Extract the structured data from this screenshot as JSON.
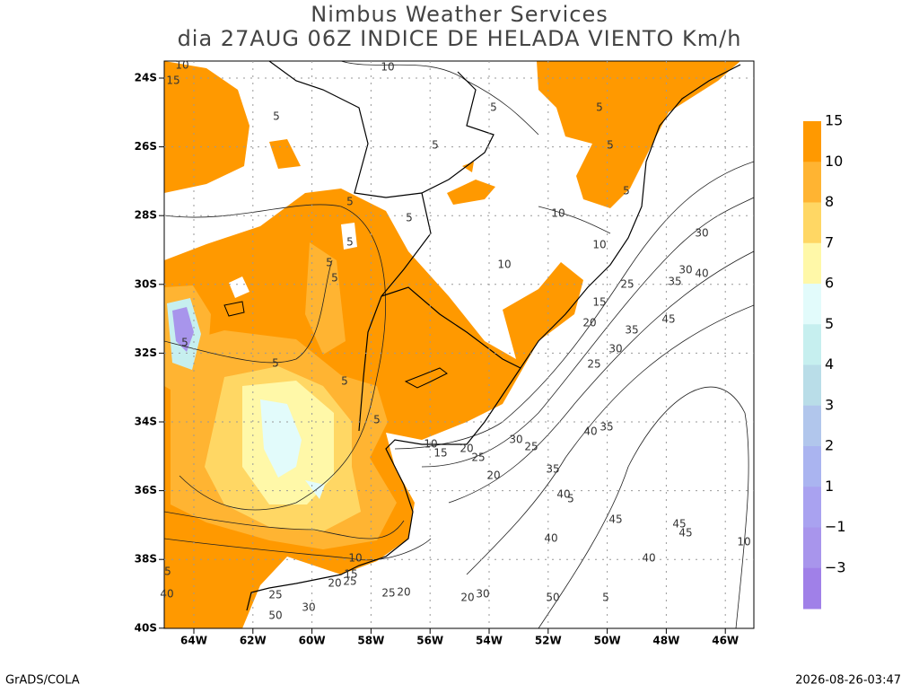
{
  "title": "Nimbus Weather Services",
  "subtitle": "dia 27AUG 06Z INDICE DE HELADA VIENTO Km/h",
  "lat_labels": [
    "24S",
    "26S",
    "28S",
    "30S",
    "32S",
    "34S",
    "36S",
    "38S",
    "40S"
  ],
  "lon_labels": [
    "64W",
    "62W",
    "60W",
    "58W",
    "56W",
    "54W",
    "52W",
    "50W",
    "48W",
    "46W"
  ],
  "colorbar": [
    {
      "label": "15",
      "color": "#ff9900"
    },
    {
      "label": "10",
      "color": "#ffb432"
    },
    {
      "label": "8",
      "color": "#ffd764"
    },
    {
      "label": "7",
      "color": "#fff8a8"
    },
    {
      "label": "6",
      "color": "#e2fbfb"
    },
    {
      "label": "5",
      "color": "#c6efef"
    },
    {
      "label": "4",
      "color": "#b9dde8"
    },
    {
      "label": "3",
      "color": "#b1c6ec"
    },
    {
      "label": "2",
      "color": "#aab4f0"
    },
    {
      "label": "1",
      "color": "#a9a2f0"
    },
    {
      "label": "−1",
      "color": "#a895ec"
    },
    {
      "label": "−3",
      "color": "#a080e8"
    }
  ],
  "contour_labels": [
    "10",
    "15",
    "10",
    "5",
    "5",
    "5",
    "5",
    "5",
    "5",
    "5",
    "5",
    "10",
    "10",
    "10",
    "5",
    "5",
    "5",
    "5",
    "5",
    "5",
    "5",
    "30",
    "30",
    "40",
    "35",
    "25",
    "15",
    "20",
    "35",
    "45",
    "30",
    "25",
    "40",
    "35",
    "10",
    "15",
    "20",
    "25",
    "30",
    "25",
    "35",
    "20",
    "40",
    "5",
    "45",
    "45",
    "45",
    "40",
    "40",
    "10",
    "15",
    "20",
    "25",
    "25",
    "20",
    "25",
    "30",
    "20",
    "30",
    "50",
    "50",
    "5",
    "5",
    "40",
    "10"
  ],
  "footer_left": "GrADS/COLA",
  "footer_right": "2026-08-26-03:47"
}
